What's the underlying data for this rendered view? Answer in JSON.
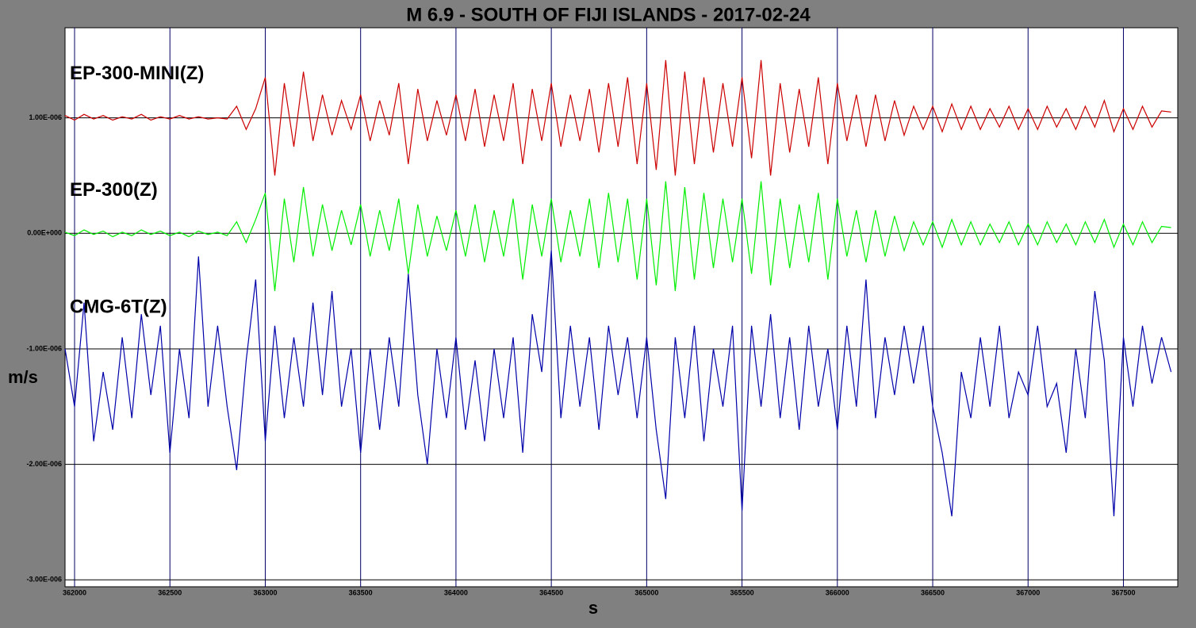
{
  "chart_data": {
    "type": "line",
    "title": "M 6.9 - SOUTH OF FIJI ISLANDS - 2017-02-24",
    "x_label": "s",
    "y_label": "m/s",
    "xlim": [
      361950,
      367785
    ],
    "ylim": [
      -3.06e-06,
      1.78e-06
    ],
    "xticks": [
      362000,
      362500,
      363000,
      363500,
      364000,
      364500,
      365000,
      365500,
      366000,
      366500,
      367000,
      367500
    ],
    "yticks": [
      {
        "value": 1e-06,
        "label": "1.00E-006"
      },
      {
        "value": 0,
        "label": "0.00E+000"
      },
      {
        "value": -1e-06,
        "label": "-1.00E-006"
      },
      {
        "value": -2e-06,
        "label": "-2.00E-006"
      },
      {
        "value": -3e-06,
        "label": "-3.00E-006"
      }
    ],
    "grid": true,
    "x": [
      361950,
      362000,
      362050,
      362100,
      362150,
      362200,
      362250,
      362300,
      362350,
      362400,
      362450,
      362500,
      362550,
      362600,
      362650,
      362700,
      362750,
      362800,
      362850,
      362900,
      362950,
      363000,
      363050,
      363100,
      363150,
      363200,
      363250,
      363300,
      363350,
      363400,
      363450,
      363500,
      363550,
      363600,
      363650,
      363700,
      363750,
      363800,
      363850,
      363900,
      363950,
      364000,
      364050,
      364100,
      364150,
      364200,
      364250,
      364300,
      364350,
      364400,
      364450,
      364500,
      364550,
      364600,
      364650,
      364700,
      364750,
      364800,
      364850,
      364900,
      364950,
      365000,
      365050,
      365100,
      365150,
      365200,
      365250,
      365300,
      365350,
      365400,
      365450,
      365500,
      365550,
      365600,
      365650,
      365700,
      365750,
      365800,
      365850,
      365900,
      365950,
      366000,
      366050,
      366100,
      366150,
      366200,
      366250,
      366300,
      366350,
      366400,
      366450,
      366500,
      366550,
      366600,
      366650,
      366700,
      366750,
      366800,
      366850,
      366900,
      366950,
      367000,
      367050,
      367100,
      367150,
      367200,
      367250,
      367300,
      367350,
      367400,
      367450,
      367500,
      367550,
      367600,
      367650,
      367700,
      367750
    ],
    "series": [
      {
        "name": "EP-300-MINI(Z)",
        "color": "#cc0000",
        "values": [
          1.02e-06,
          9.8e-07,
          1.03e-06,
          9.9e-07,
          1.02e-06,
          9.8e-07,
          1.01e-06,
          9.9e-07,
          1.03e-06,
          9.8e-07,
          1.01e-06,
          9.9e-07,
          1.02e-06,
          9.9e-07,
          1.01e-06,
          9.9e-07,
          1e-06,
          9.9e-07,
          1.1e-06,
          9e-07,
          1.08e-06,
          1.35e-06,
          5e-07,
          1.3e-06,
          7.5e-07,
          1.4e-06,
          8e-07,
          1.2e-06,
          8.5e-07,
          1.15e-06,
          9e-07,
          1.2e-06,
          8e-07,
          1.15e-06,
          8.5e-07,
          1.3e-06,
          6e-07,
          1.25e-06,
          8e-07,
          1.15e-06,
          8.5e-07,
          1.2e-06,
          8e-07,
          1.25e-06,
          7.5e-07,
          1.2e-06,
          8e-07,
          1.3e-06,
          6e-07,
          1.25e-06,
          8e-07,
          1.3e-06,
          7.5e-07,
          1.2e-06,
          8e-07,
          1.25e-06,
          7e-07,
          1.3e-06,
          7.5e-07,
          1.35e-06,
          6e-07,
          1.3e-06,
          5.5e-07,
          1.5e-06,
          5e-07,
          1.4e-06,
          6e-07,
          1.35e-06,
          7e-07,
          1.3e-06,
          7.5e-07,
          1.35e-06,
          6.5e-07,
          1.5e-06,
          5e-07,
          1.3e-06,
          7e-07,
          1.25e-06,
          7.5e-07,
          1.35e-06,
          6e-07,
          1.3e-06,
          8e-07,
          1.2e-06,
          7.5e-07,
          1.2e-06,
          8e-07,
          1.15e-06,
          8.5e-07,
          1.1e-06,
          9e-07,
          1.1e-06,
          8.8e-07,
          1.12e-06,
          9e-07,
          1.1e-06,
          9e-07,
          1.08e-06,
          9.2e-07,
          1.1e-06,
          9e-07,
          1.08e-06,
          9e-07,
          1.1e-06,
          9.2e-07,
          1.08e-06,
          9e-07,
          1.1e-06,
          9.2e-07,
          1.15e-06,
          8.8e-07,
          1.08e-06,
          9e-07,
          1.1e-06,
          9.2e-07,
          1.06e-06,
          1.05e-06
        ]
      },
      {
        "name": "EP-300(Z)",
        "color": "#00ee00",
        "values": [
          1e-08,
          -2e-08,
          3e-08,
          -1e-08,
          2e-08,
          -3e-08,
          1e-08,
          -2e-08,
          3e-08,
          -1e-08,
          2e-08,
          -2e-08,
          1e-08,
          -3e-08,
          2e-08,
          -1e-08,
          1e-08,
          -2e-08,
          1e-07,
          -8e-08,
          1.2e-07,
          3.5e-07,
          -5e-07,
          3e-07,
          -2.5e-07,
          4e-07,
          -2e-07,
          2.5e-07,
          -1.5e-07,
          2e-07,
          -1e-07,
          2.5e-07,
          -2e-07,
          2e-07,
          -1.5e-07,
          3e-07,
          -3.5e-07,
          2.5e-07,
          -2e-07,
          1.5e-07,
          -1.5e-07,
          2e-07,
          -2e-07,
          2.5e-07,
          -2.5e-07,
          2e-07,
          -2e-07,
          3e-07,
          -4e-07,
          2.5e-07,
          -2e-07,
          3e-07,
          -2.5e-07,
          2e-07,
          -2e-07,
          3e-07,
          -3e-07,
          3.5e-07,
          -2.5e-07,
          3e-07,
          -4e-07,
          3e-07,
          -4.5e-07,
          4.5e-07,
          -5e-07,
          4e-07,
          -4e-07,
          3.5e-07,
          -3e-07,
          3e-07,
          -2.5e-07,
          3e-07,
          -3.5e-07,
          4.5e-07,
          -4.5e-07,
          3e-07,
          -3e-07,
          2.5e-07,
          -2.5e-07,
          3.5e-07,
          -4e-07,
          3e-07,
          -2e-07,
          2e-07,
          -2.5e-07,
          2e-07,
          -2e-07,
          1.5e-07,
          -1.5e-07,
          1e-07,
          -1e-07,
          1e-07,
          -1.2e-07,
          1.2e-07,
          -1e-07,
          1e-07,
          -1e-07,
          8e-08,
          -8e-08,
          1e-07,
          -1e-07,
          8e-08,
          -1e-07,
          1e-07,
          -8e-08,
          8e-08,
          -1e-07,
          1e-07,
          -8e-08,
          1.2e-07,
          -1.2e-07,
          8e-08,
          -1e-07,
          1e-07,
          -8e-08,
          6e-08,
          5e-08
        ]
      },
      {
        "name": "CMG-6T(Z)",
        "color": "#0000aa",
        "values": [
          -1e-06,
          -1.5e-06,
          -6e-07,
          -1.8e-06,
          -1.2e-06,
          -1.7e-06,
          -9e-07,
          -1.6e-06,
          -7e-07,
          -1.4e-06,
          -8e-07,
          -1.9e-06,
          -1e-06,
          -1.6e-06,
          -2e-07,
          -1.5e-06,
          -8e-07,
          -1.5e-06,
          -2.05e-06,
          -1.1e-06,
          -4e-07,
          -1.8e-06,
          -8e-07,
          -1.6e-06,
          -9e-07,
          -1.5e-06,
          -6e-07,
          -1.4e-06,
          -5e-07,
          -1.5e-06,
          -1e-06,
          -1.9e-06,
          -1e-06,
          -1.7e-06,
          -9e-07,
          -1.5e-06,
          -3.5e-07,
          -1.4e-06,
          -2e-06,
          -1e-06,
          -1.6e-06,
          -9e-07,
          -1.7e-06,
          -1.1e-06,
          -1.8e-06,
          -1e-06,
          -1.6e-06,
          -9e-07,
          -1.9e-06,
          -7e-07,
          -1.2e-06,
          -1.5e-07,
          -1.6e-06,
          -8e-07,
          -1.5e-06,
          -9e-07,
          -1.7e-06,
          -8e-07,
          -1.4e-06,
          -9e-07,
          -1.6e-06,
          -9e-07,
          -1.7e-06,
          -2.3e-06,
          -9e-07,
          -1.6e-06,
          -8e-07,
          -1.8e-06,
          -1e-06,
          -1.5e-06,
          -8e-07,
          -2.4e-06,
          -8e-07,
          -1.5e-06,
          -7e-07,
          -1.6e-06,
          -9e-07,
          -1.7e-06,
          -8e-07,
          -1.5e-06,
          -1e-06,
          -1.7e-06,
          -8e-07,
          -1.5e-06,
          -4e-07,
          -1.6e-06,
          -9e-07,
          -1.4e-06,
          -8e-07,
          -1.3e-06,
          -8e-07,
          -1.5e-06,
          -1.9e-06,
          -2.45e-06,
          -1.2e-06,
          -1.6e-06,
          -9e-07,
          -1.5e-06,
          -8e-07,
          -1.6e-06,
          -1.2e-06,
          -1.4e-06,
          -8e-07,
          -1.5e-06,
          -1.3e-06,
          -1.9e-06,
          -1e-06,
          -1.6e-06,
          -5e-07,
          -1.1e-06,
          -2.45e-06,
          -9e-07,
          -1.5e-06,
          -8e-07,
          -1.3e-06,
          -9e-07,
          -1.2e-06
        ]
      }
    ]
  }
}
